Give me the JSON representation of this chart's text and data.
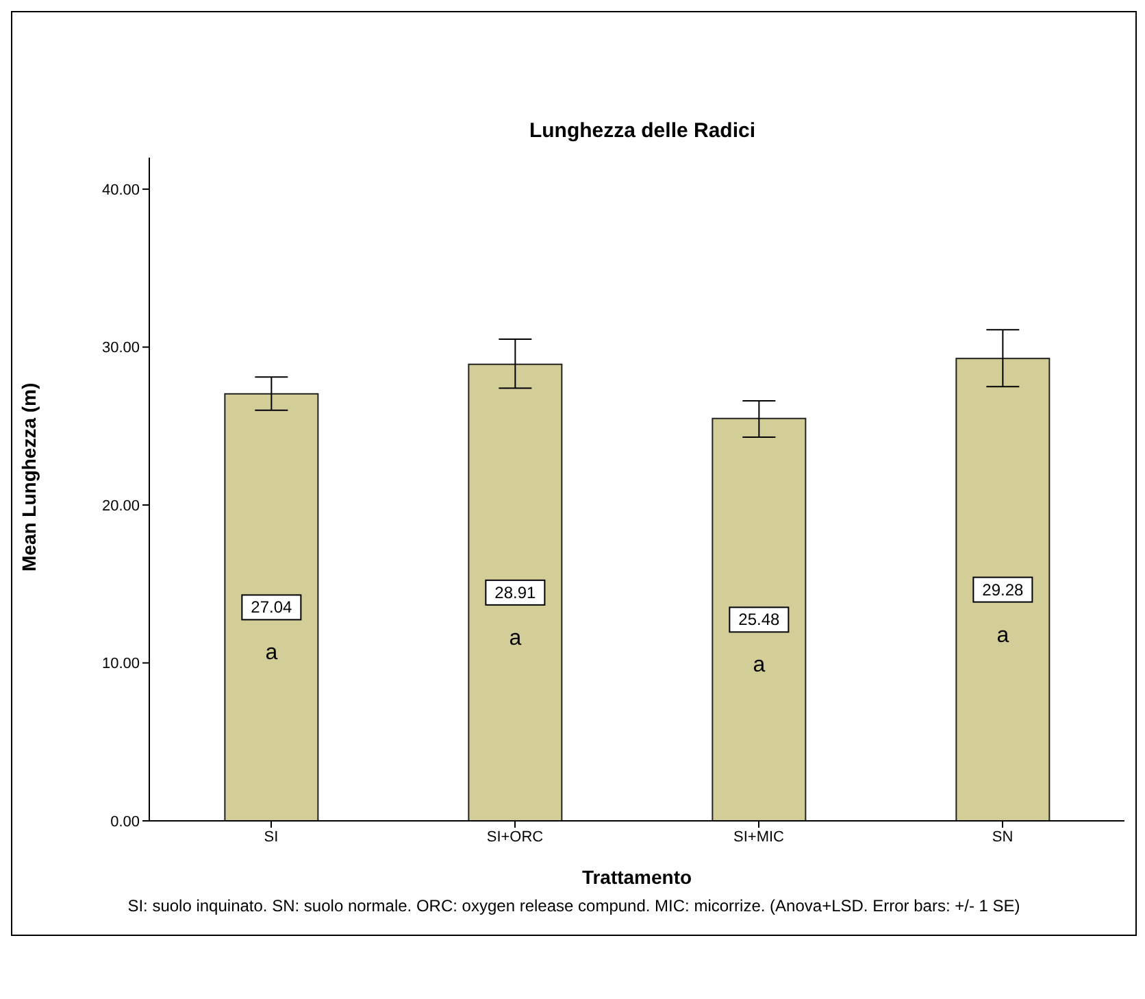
{
  "chart_data": {
    "type": "bar",
    "title": "Lunghezza delle Radici",
    "xlabel": "Trattamento",
    "ylabel": "Mean Lunghezza (m)",
    "categories": [
      "SI",
      "SI+ORC",
      "SI+MIC",
      "SN"
    ],
    "values": [
      27.04,
      28.91,
      25.48,
      29.28
    ],
    "errors": [
      [
        26.0,
        28.1
      ],
      [
        27.4,
        30.5
      ],
      [
        24.3,
        26.6
      ],
      [
        27.5,
        31.1
      ]
    ],
    "color": "#d3cd98",
    "data_labels": true,
    "ylim": [
      0,
      42
    ],
    "yticks": [
      {
        "value": 0,
        "label": "0.00"
      },
      {
        "value": 10,
        "label": "10.00"
      },
      {
        "value": 20,
        "label": "20.00"
      },
      {
        "value": 30,
        "label": "30.00"
      },
      {
        "value": 40,
        "label": "40.00"
      }
    ],
    "grid": false,
    "legend": false,
    "annotations": [
      "a",
      "a",
      "a",
      "a",
      "SI: suolo inquinato. SN: suolo normale. ORC: oxygen release compund. MIC: micorrize. (Anova+LSD. Error bars: +/- 1 SE)"
    ]
  }
}
